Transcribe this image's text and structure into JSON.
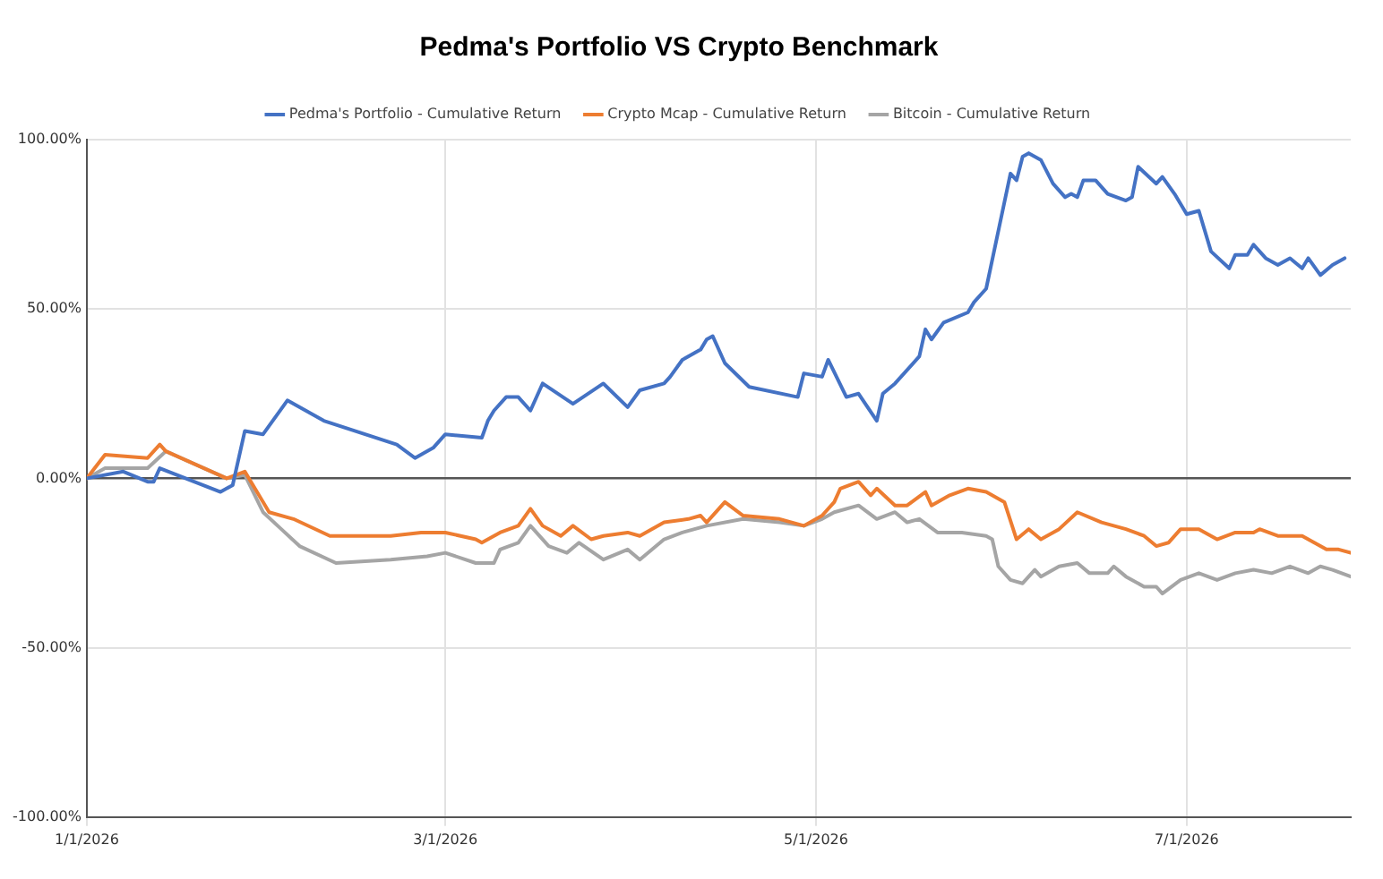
{
  "chart_data": {
    "type": "line",
    "title": "Pedma's Portfolio VS Crypto Benchmark",
    "xlim": [
      "2026-01-01",
      "2026-07-28"
    ],
    "xticks": [
      {
        "value": "2026-01-01",
        "label": "1/1/2026"
      },
      {
        "value": "2026-03-01",
        "label": "3/1/2026"
      },
      {
        "value": "2026-05-01",
        "label": "5/1/2026"
      },
      {
        "value": "2026-07-01",
        "label": "7/1/2026"
      }
    ],
    "ylim": [
      -100,
      100
    ],
    "yticks": [
      {
        "value": -100,
        "label": "-100.00%"
      },
      {
        "value": -50,
        "label": "-50.00%"
      },
      {
        "value": 0,
        "label": "0.00%"
      },
      {
        "value": 50,
        "label": "50.00%"
      },
      {
        "value": 100,
        "label": "100.00%"
      }
    ],
    "grid": true,
    "legend": "top",
    "marker": "none",
    "line_style": "solid",
    "series": [
      {
        "name": "Pedma's Portfolio - Cumulative Return",
        "color": "#4472c4",
        "x": [
          "2026-01-01",
          "2026-01-07",
          "2026-01-11",
          "2026-01-12",
          "2026-01-13",
          "2026-01-23",
          "2026-01-25",
          "2026-01-27",
          "2026-01-30",
          "2026-02-03",
          "2026-02-09",
          "2026-02-21",
          "2026-02-24",
          "2026-02-27",
          "2026-03-01",
          "2026-03-07",
          "2026-03-08",
          "2026-03-09",
          "2026-03-11",
          "2026-03-13",
          "2026-03-15",
          "2026-03-17",
          "2026-03-22",
          "2026-03-27",
          "2026-03-31",
          "2026-04-02",
          "2026-04-06",
          "2026-04-07",
          "2026-04-09",
          "2026-04-12",
          "2026-04-13",
          "2026-04-14",
          "2026-04-16",
          "2026-04-20",
          "2026-04-28",
          "2026-04-29",
          "2026-05-02",
          "2026-05-03",
          "2026-05-06",
          "2026-05-08",
          "2026-05-11",
          "2026-05-12",
          "2026-05-14",
          "2026-05-18",
          "2026-05-19",
          "2026-05-20",
          "2026-05-22",
          "2026-05-26",
          "2026-05-27",
          "2026-05-29",
          "2026-06-02",
          "2026-06-03",
          "2026-06-04",
          "2026-06-05",
          "2026-06-07",
          "2026-06-09",
          "2026-06-11",
          "2026-06-12",
          "2026-06-13",
          "2026-06-14",
          "2026-06-16",
          "2026-06-18",
          "2026-06-21",
          "2026-06-22",
          "2026-06-23",
          "2026-06-26",
          "2026-06-27",
          "2026-06-29",
          "2026-07-01",
          "2026-07-03",
          "2026-07-05",
          "2026-07-08",
          "2026-07-09",
          "2026-07-11",
          "2026-07-12",
          "2026-07-14",
          "2026-07-16",
          "2026-07-18",
          "2026-07-20",
          "2026-07-21",
          "2026-07-23",
          "2026-07-25",
          "2026-07-27"
        ],
        "values": [
          0,
          2,
          -1,
          -1,
          3,
          -4,
          -2,
          14,
          13,
          23,
          17,
          10,
          6,
          9,
          13,
          12,
          17,
          20,
          24,
          24,
          20,
          28,
          22,
          28,
          21,
          26,
          28,
          30,
          35,
          38,
          41,
          42,
          34,
          27,
          24,
          31,
          30,
          35,
          24,
          25,
          17,
          25,
          28,
          36,
          44,
          41,
          46,
          49,
          52,
          56,
          90,
          88,
          95,
          96,
          94,
          87,
          83,
          84,
          83,
          88,
          88,
          84,
          82,
          83,
          92,
          87,
          89,
          84,
          78,
          79,
          67,
          62,
          66,
          66,
          69,
          65,
          63,
          65,
          62,
          65,
          60,
          63,
          65
        ]
      },
      {
        "name": "Crypto Mcap - Cumulative Return",
        "color": "#ed7d31",
        "x": [
          "2026-01-01",
          "2026-01-04",
          "2026-01-11",
          "2026-01-13",
          "2026-01-14",
          "2026-01-24",
          "2026-01-27",
          "2026-01-31",
          "2026-02-04",
          "2026-02-10",
          "2026-02-20",
          "2026-02-25",
          "2026-03-01",
          "2026-03-06",
          "2026-03-07",
          "2026-03-10",
          "2026-03-13",
          "2026-03-15",
          "2026-03-17",
          "2026-03-20",
          "2026-03-22",
          "2026-03-25",
          "2026-03-27",
          "2026-03-31",
          "2026-04-02",
          "2026-04-06",
          "2026-04-10",
          "2026-04-12",
          "2026-04-13",
          "2026-04-16",
          "2026-04-19",
          "2026-04-25",
          "2026-04-29",
          "2026-05-02",
          "2026-05-04",
          "2026-05-05",
          "2026-05-08",
          "2026-05-10",
          "2026-05-11",
          "2026-05-14",
          "2026-05-16",
          "2026-05-19",
          "2026-05-20",
          "2026-05-23",
          "2026-05-26",
          "2026-05-29",
          "2026-06-01",
          "2026-06-03",
          "2026-06-05",
          "2026-06-07",
          "2026-06-10",
          "2026-06-13",
          "2026-06-17",
          "2026-06-21",
          "2026-06-24",
          "2026-06-26",
          "2026-06-28",
          "2026-06-30",
          "2026-07-03",
          "2026-07-06",
          "2026-07-09",
          "2026-07-12",
          "2026-07-13",
          "2026-07-16",
          "2026-07-20",
          "2026-07-22",
          "2026-07-24",
          "2026-07-26",
          "2026-07-28"
        ],
        "values": [
          0,
          7,
          6,
          10,
          8,
          0,
          2,
          -10,
          -12,
          -17,
          -17,
          -16,
          -16,
          -18,
          -19,
          -16,
          -14,
          -9,
          -14,
          -17,
          -14,
          -18,
          -17,
          -16,
          -17,
          -13,
          -12,
          -11,
          -13,
          -7,
          -11,
          -12,
          -14,
          -11,
          -7,
          -3,
          -1,
          -5,
          -3,
          -8,
          -8,
          -4,
          -8,
          -5,
          -3,
          -4,
          -7,
          -18,
          -15,
          -18,
          -15,
          -10,
          -13,
          -15,
          -17,
          -20,
          -19,
          -15,
          -15,
          -18,
          -16,
          -16,
          -15,
          -17,
          -17,
          -19,
          -21,
          -21,
          -22
        ]
      },
      {
        "name": "Bitcoin - Cumulative Return",
        "color": "#a5a5a5",
        "x": [
          "2026-01-01",
          "2026-01-04",
          "2026-01-11",
          "2026-01-14",
          "2026-01-24",
          "2026-01-27",
          "2026-01-30",
          "2026-02-02",
          "2026-02-05",
          "2026-02-11",
          "2026-02-20",
          "2026-02-26",
          "2026-03-01",
          "2026-03-06",
          "2026-03-09",
          "2026-03-10",
          "2026-03-13",
          "2026-03-15",
          "2026-03-18",
          "2026-03-21",
          "2026-03-23",
          "2026-03-27",
          "2026-03-31",
          "2026-04-02",
          "2026-04-06",
          "2026-04-09",
          "2026-04-13",
          "2026-04-19",
          "2026-04-25",
          "2026-04-29",
          "2026-05-02",
          "2026-05-04",
          "2026-05-08",
          "2026-05-11",
          "2026-05-14",
          "2026-05-16",
          "2026-05-18",
          "2026-05-21",
          "2026-05-25",
          "2026-05-29",
          "2026-05-30",
          "2026-05-31",
          "2026-06-02",
          "2026-06-04",
          "2026-06-06",
          "2026-06-07",
          "2026-06-10",
          "2026-06-13",
          "2026-06-15",
          "2026-06-18",
          "2026-06-19",
          "2026-06-21",
          "2026-06-24",
          "2026-06-26",
          "2026-06-27",
          "2026-06-30",
          "2026-07-03",
          "2026-07-06",
          "2026-07-09",
          "2026-07-12",
          "2026-07-15",
          "2026-07-18",
          "2026-07-21",
          "2026-07-23",
          "2026-07-25",
          "2026-07-28"
        ],
        "values": [
          0,
          3,
          3,
          8,
          0,
          1,
          -10,
          -15,
          -20,
          -25,
          -24,
          -23,
          -22,
          -25,
          -25,
          -21,
          -19,
          -14,
          -20,
          -22,
          -19,
          -24,
          -21,
          -24,
          -18,
          -16,
          -14,
          -12,
          -13,
          -14,
          -12,
          -10,
          -8,
          -12,
          -10,
          -13,
          -12,
          -16,
          -16,
          -17,
          -18,
          -26,
          -30,
          -31,
          -27,
          -29,
          -26,
          -25,
          -28,
          -28,
          -26,
          -29,
          -32,
          -32,
          -34,
          -30,
          -28,
          -30,
          -28,
          -27,
          -28,
          -26,
          -28,
          -26,
          -27,
          -29
        ]
      }
    ]
  }
}
